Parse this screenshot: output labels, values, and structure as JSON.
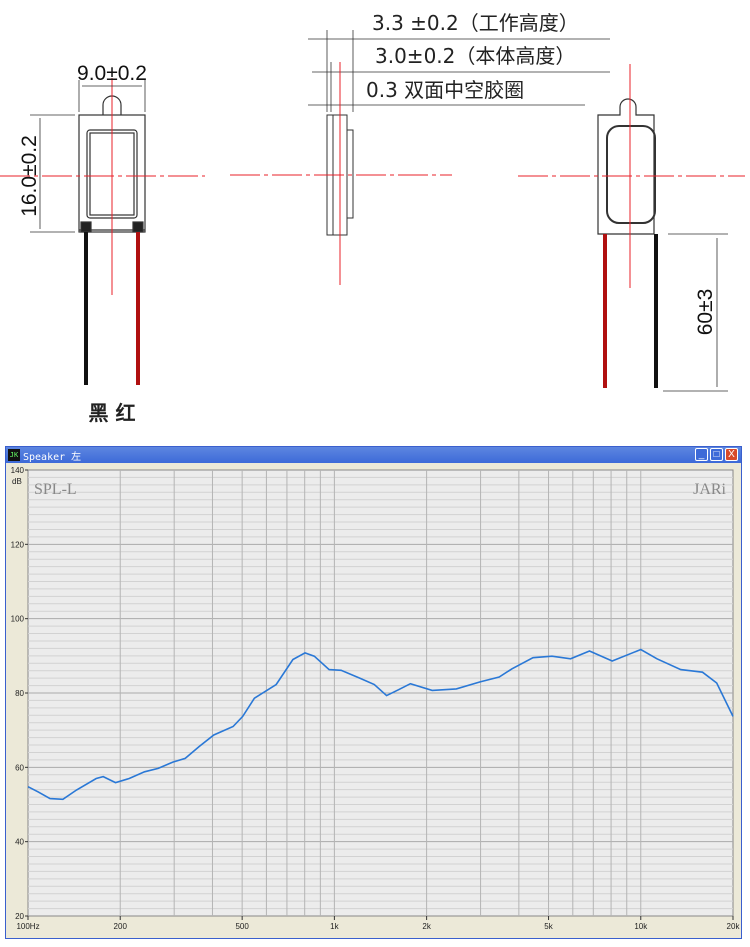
{
  "drawing": {
    "front_width": "9.0±0.2",
    "front_height": "16.0±0.2",
    "wire_labels": "黑 红",
    "work_height": "3.3 ±0.2（工作高度）",
    "body_height": "3.0±0.2（本体高度）",
    "gasket": "0.3 双面中空胶圈",
    "lead_length": "60±3",
    "colors": {
      "centerline": "#e8202a",
      "red_wire": "#b01010",
      "black_wire": "#111111"
    }
  },
  "window": {
    "title": "Speaker 左",
    "app_icon": "JK",
    "minimize": "_",
    "maximize": "□",
    "close": "X",
    "title_color": "#3d6ad8"
  },
  "chart_data": {
    "type": "line",
    "title": "SPL-L",
    "watermark": "JARi",
    "ylabel": "dB",
    "xscale": "log",
    "xlim": [
      100,
      20000
    ],
    "ylim": [
      20,
      140
    ],
    "grid": true,
    "yticks": [
      "140",
      "120",
      "100",
      "80",
      "60",
      "40",
      "20"
    ],
    "xticks": [
      {
        "value": 100,
        "label": "100Hz"
      },
      {
        "value": 200,
        "label": "200"
      },
      {
        "value": 500,
        "label": "500"
      },
      {
        "value": 1000,
        "label": "1k"
      },
      {
        "value": 2000,
        "label": "2k"
      },
      {
        "value": 5000,
        "label": "5k"
      },
      {
        "value": 10000,
        "label": "10k"
      },
      {
        "value": 20000,
        "label": "20k"
      }
    ],
    "line_color": "#2a78d6",
    "series": [
      {
        "x": [
          100,
          108,
          118,
          130,
          144,
          167,
          176,
          193,
          214,
          240,
          266,
          297,
          326,
          362,
          404,
          467,
          502,
          548,
          646,
          732,
          802,
          860,
          961,
          1052,
          1210,
          1350,
          1480,
          1620,
          1770,
          2085,
          2500,
          2990,
          3450,
          3800,
          4450,
          5130,
          5900,
          6800,
          8070,
          10000,
          11300,
          13500,
          15900,
          17700,
          20000
        ],
        "y": [
          54.8,
          53.4,
          51.6,
          51.4,
          53.9,
          57,
          57.5,
          55.9,
          57,
          58.8,
          59.7,
          61.4,
          62.4,
          65.6,
          68.7,
          71,
          73.7,
          78.6,
          82.3,
          89,
          90.8,
          89.9,
          86.3,
          86.1,
          84,
          82.3,
          79.3,
          80.9,
          82.5,
          80.7,
          81.1,
          83,
          84.3,
          86.5,
          89.5,
          89.9,
          89.2,
          91.3,
          88.6,
          91.7,
          89.2,
          86.3,
          85.6,
          82.7,
          73.7
        ]
      }
    ]
  }
}
